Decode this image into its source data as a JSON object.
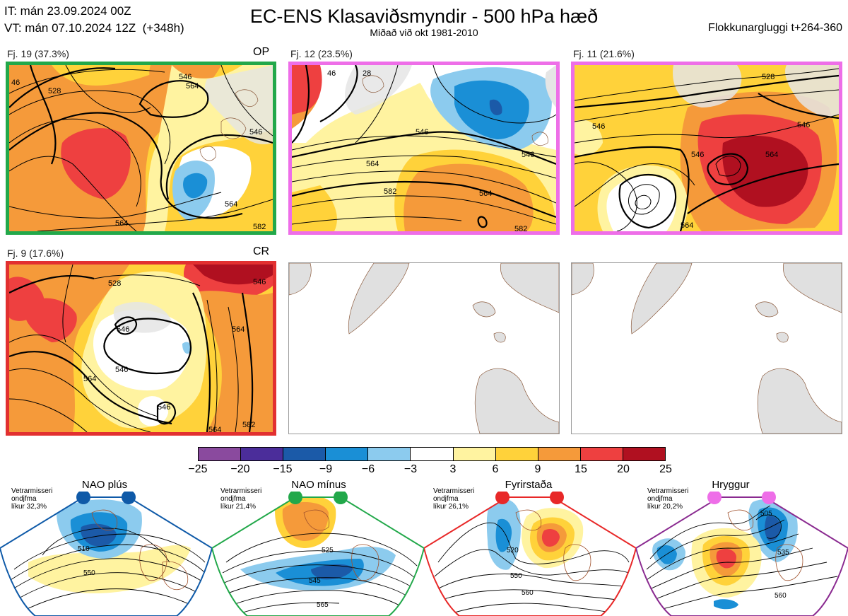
{
  "header": {
    "it_line": "IT: mán 23.09.2024 00Z",
    "vt_line": "VT: mán 07.10.2024 12Z  (+348h)",
    "title": "EC-ENS Klasaviðsmyndir - 500 hPa hæð",
    "subtitle": "Miðað við okt 1981-2010",
    "window": "Flokkunargluggi t+264-360"
  },
  "panels": [
    {
      "label": "Fj. 19 (37.3%)",
      "tag": "OP",
      "border": "#22a84a",
      "contour_labels": [
        "546",
        "564",
        "564",
        "546",
        "564",
        "582",
        "528",
        "46"
      ]
    },
    {
      "label": "Fj. 12 (23.5%)",
      "tag": "",
      "border": "#ee6ee8",
      "contour_labels": [
        "546",
        "546",
        "564",
        "582",
        "564",
        "582",
        "46",
        "28"
      ]
    },
    {
      "label": "Fj. 11 (21.6%)",
      "tag": "",
      "border": "#ee6ee8",
      "contour_labels": [
        "528",
        "546",
        "546",
        "564",
        "564",
        "546"
      ]
    },
    {
      "label": "Fj. 9 (17.6%)",
      "tag": "CR",
      "border": "#e23030",
      "contour_labels": [
        "528",
        "546",
        "546",
        "564",
        "546",
        "564",
        "564",
        "582",
        "546"
      ]
    }
  ],
  "colorbar": {
    "colors": [
      "#8a4a9e",
      "#4b2d9a",
      "#1b5aa8",
      "#1a8fd6",
      "#8ccbee",
      "#ffffff",
      "#fff3a0",
      "#ffd23a",
      "#f59a3a",
      "#ee4040",
      "#b01020"
    ],
    "ticks": [
      "−25",
      "−20",
      "−15",
      "−9",
      "−6",
      "−3",
      "3",
      "6",
      "9",
      "15",
      "20",
      "25"
    ]
  },
  "regimes": [
    {
      "name": "NAO plús",
      "info": "Vetrarmisseri\nondjfma\nlíkur 32,3%",
      "color": "#0f5aa8",
      "contour_labels": [
        "510",
        "550"
      ]
    },
    {
      "name": "NAO mínus",
      "info": "Vetrarmisseri\nondjfma\nlíkur 21,4%",
      "color": "#22a84a",
      "contour_labels": [
        "525",
        "545",
        "565"
      ]
    },
    {
      "name": "Fyrirstaða",
      "info": "Vetrarmisseri\nondjfma\nlíkur 26,1%",
      "color": "#e82828",
      "contour_labels": [
        "520",
        "550",
        "560"
      ]
    },
    {
      "name": "Hryggur",
      "info": "Vetrarmisseri\nondjfma\nlíkur 20,2%",
      "color": "#8a2a90",
      "contour_labels": [
        "505",
        "535",
        "560"
      ]
    }
  ]
}
